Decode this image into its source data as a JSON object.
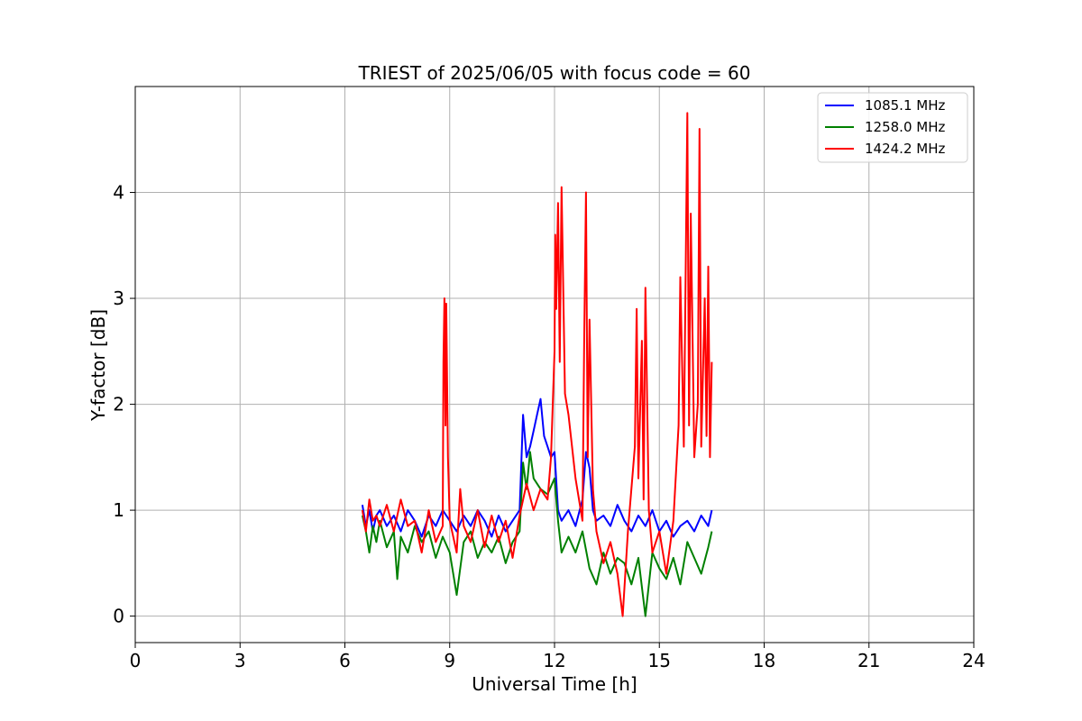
{
  "chart_data": {
    "type": "line",
    "title": "TRIEST of 2025/06/05 with focus code = 60",
    "xlabel": "Universal Time [h]",
    "ylabel": "Y-factor [dB]",
    "xlim": [
      0,
      24
    ],
    "ylim": [
      -0.25,
      5.0
    ],
    "xticks": [
      0,
      3,
      6,
      9,
      12,
      15,
      18,
      21,
      24
    ],
    "yticks": [
      0,
      1,
      2,
      3,
      4
    ],
    "grid": true,
    "legend_position": "top-right",
    "series": [
      {
        "name": "1085.1 MHz",
        "color": "#0000ff",
        "x": [
          6.5,
          6.6,
          6.7,
          6.8,
          6.9,
          7.0,
          7.2,
          7.4,
          7.6,
          7.8,
          8.0,
          8.2,
          8.4,
          8.6,
          8.8,
          9.0,
          9.2,
          9.4,
          9.6,
          9.8,
          10.0,
          10.2,
          10.4,
          10.6,
          10.8,
          11.0,
          11.1,
          11.2,
          11.3,
          11.4,
          11.5,
          11.6,
          11.7,
          11.8,
          11.9,
          12.0,
          12.1,
          12.2,
          12.4,
          12.6,
          12.8,
          12.9,
          13.0,
          13.1,
          13.2,
          13.4,
          13.6,
          13.8,
          14.0,
          14.2,
          14.4,
          14.6,
          14.8,
          15.0,
          15.2,
          15.4,
          15.6,
          15.8,
          16.0,
          16.2,
          16.4,
          16.5
        ],
        "y": [
          1.05,
          0.85,
          1.0,
          0.8,
          0.95,
          1.0,
          0.85,
          0.95,
          0.8,
          1.0,
          0.9,
          0.75,
          0.95,
          0.85,
          1.0,
          0.9,
          0.8,
          0.95,
          0.85,
          1.0,
          0.9,
          0.75,
          0.95,
          0.8,
          0.9,
          1.0,
          1.9,
          1.5,
          1.6,
          1.75,
          1.9,
          2.05,
          1.7,
          1.6,
          1.5,
          1.55,
          1.0,
          0.9,
          1.0,
          0.85,
          1.1,
          1.55,
          1.4,
          1.0,
          0.9,
          0.95,
          0.85,
          1.05,
          0.9,
          0.8,
          0.95,
          0.85,
          1.0,
          0.8,
          0.9,
          0.75,
          0.85,
          0.9,
          0.8,
          0.95,
          0.85,
          1.0
        ]
      },
      {
        "name": "1258.0 MHz",
        "color": "#008000",
        "x": [
          6.5,
          6.6,
          6.7,
          6.8,
          6.9,
          7.0,
          7.2,
          7.4,
          7.5,
          7.6,
          7.8,
          8.0,
          8.2,
          8.4,
          8.6,
          8.8,
          9.0,
          9.2,
          9.4,
          9.6,
          9.8,
          10.0,
          10.2,
          10.4,
          10.6,
          10.8,
          11.0,
          11.1,
          11.2,
          11.3,
          11.4,
          11.6,
          11.8,
          12.0,
          12.1,
          12.2,
          12.4,
          12.6,
          12.8,
          13.0,
          13.2,
          13.4,
          13.6,
          13.8,
          14.0,
          14.2,
          14.4,
          14.6,
          14.8,
          15.0,
          15.2,
          15.4,
          15.6,
          15.8,
          16.0,
          16.2,
          16.4,
          16.5
        ],
        "y": [
          0.95,
          0.8,
          0.6,
          0.85,
          0.7,
          0.9,
          0.65,
          0.8,
          0.35,
          0.75,
          0.6,
          0.85,
          0.7,
          0.8,
          0.55,
          0.75,
          0.6,
          0.2,
          0.7,
          0.8,
          0.55,
          0.7,
          0.6,
          0.75,
          0.5,
          0.7,
          0.8,
          1.45,
          1.2,
          1.55,
          1.3,
          1.2,
          1.15,
          1.3,
          0.9,
          0.6,
          0.75,
          0.6,
          0.8,
          0.45,
          0.3,
          0.6,
          0.4,
          0.55,
          0.5,
          0.3,
          0.55,
          0.0,
          0.6,
          0.45,
          0.35,
          0.55,
          0.3,
          0.7,
          0.55,
          0.4,
          0.65,
          0.8
        ]
      },
      {
        "name": "1424.2 MHz",
        "color": "#ff0000",
        "x": [
          6.5,
          6.6,
          6.7,
          6.8,
          6.9,
          7.0,
          7.2,
          7.4,
          7.6,
          7.8,
          8.0,
          8.2,
          8.4,
          8.6,
          8.8,
          8.82,
          8.85,
          8.88,
          8.9,
          8.95,
          9.0,
          9.2,
          9.3,
          9.4,
          9.6,
          9.8,
          10.0,
          10.2,
          10.4,
          10.6,
          10.8,
          11.0,
          11.2,
          11.4,
          11.6,
          11.8,
          11.9,
          12.0,
          12.02,
          12.05,
          12.1,
          12.15,
          12.2,
          12.3,
          12.4,
          12.6,
          12.8,
          12.85,
          12.9,
          12.95,
          13.0,
          13.1,
          13.2,
          13.4,
          13.6,
          13.8,
          13.95,
          14.1,
          14.3,
          14.35,
          14.4,
          14.5,
          14.55,
          14.6,
          14.7,
          14.8,
          15.0,
          15.2,
          15.4,
          15.55,
          15.6,
          15.7,
          15.8,
          15.85,
          15.9,
          16.0,
          16.1,
          16.15,
          16.2,
          16.3,
          16.35,
          16.4,
          16.45,
          16.5
        ],
        "y": [
          1.0,
          0.8,
          1.1,
          0.9,
          0.95,
          0.85,
          1.05,
          0.8,
          1.1,
          0.85,
          0.9,
          0.6,
          1.0,
          0.7,
          0.85,
          2.4,
          3.0,
          1.8,
          2.95,
          1.5,
          0.9,
          0.6,
          1.2,
          0.85,
          0.7,
          1.0,
          0.65,
          0.95,
          0.7,
          0.9,
          0.55,
          0.95,
          1.25,
          1.0,
          1.2,
          1.1,
          1.5,
          2.5,
          3.6,
          2.9,
          3.9,
          2.4,
          4.05,
          2.1,
          1.9,
          1.3,
          0.9,
          2.6,
          4.0,
          1.5,
          2.8,
          1.2,
          0.8,
          0.5,
          0.7,
          0.4,
          0.0,
          0.8,
          1.6,
          2.9,
          1.3,
          2.6,
          1.1,
          3.1,
          1.0,
          0.6,
          0.8,
          0.4,
          0.9,
          1.8,
          3.2,
          1.6,
          4.75,
          1.8,
          3.8,
          1.5,
          2.0,
          4.6,
          1.6,
          3.0,
          1.7,
          3.3,
          1.5,
          2.4
        ]
      }
    ]
  }
}
